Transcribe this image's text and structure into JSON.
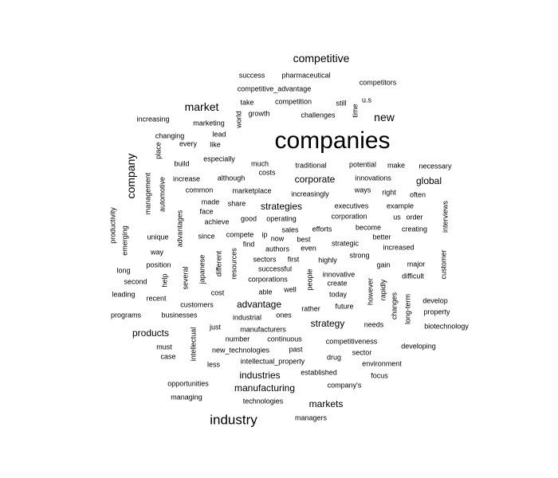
{
  "title": "Word cloud",
  "text_color": "#000000",
  "background": "#ffffff",
  "words": [
    {
      "text": "companies",
      "weight": 10,
      "vertical": false
    },
    {
      "text": "industry",
      "weight": 6,
      "vertical": false
    },
    {
      "text": "competitive",
      "weight": 5,
      "vertical": false
    },
    {
      "text": "market",
      "weight": 5,
      "vertical": false
    },
    {
      "text": "company",
      "weight": 5,
      "vertical": true
    },
    {
      "text": "new",
      "weight": 5,
      "vertical": false
    },
    {
      "text": "global",
      "weight": 4,
      "vertical": false
    },
    {
      "text": "corporate",
      "weight": 4,
      "vertical": false
    },
    {
      "text": "strategy",
      "weight": 4,
      "vertical": false
    },
    {
      "text": "products",
      "weight": 4,
      "vertical": false
    },
    {
      "text": "markets",
      "weight": 4,
      "vertical": false
    },
    {
      "text": "industries",
      "weight": 3,
      "vertical": false
    },
    {
      "text": "manufacturing",
      "weight": 3,
      "vertical": false
    },
    {
      "text": "advantage",
      "weight": 3,
      "vertical": false
    },
    {
      "text": "strategies",
      "weight": 3,
      "vertical": false
    },
    {
      "text": "success",
      "weight": 1,
      "vertical": false
    },
    {
      "text": "pharmaceutical",
      "weight": 1,
      "vertical": false
    },
    {
      "text": "competitors",
      "weight": 1,
      "vertical": false
    },
    {
      "text": "competitive_advantage",
      "weight": 2,
      "vertical": false
    },
    {
      "text": "u.s",
      "weight": 1,
      "vertical": false
    },
    {
      "text": "take",
      "weight": 1,
      "vertical": false
    },
    {
      "text": "competition",
      "weight": 2,
      "vertical": false
    },
    {
      "text": "still",
      "weight": 1,
      "vertical": false
    },
    {
      "text": "time",
      "weight": 1,
      "vertical": true
    },
    {
      "text": "world",
      "weight": 1,
      "vertical": true
    },
    {
      "text": "growth",
      "weight": 1,
      "vertical": false
    },
    {
      "text": "challenges",
      "weight": 1,
      "vertical": false
    },
    {
      "text": "increasing",
      "weight": 1,
      "vertical": false
    },
    {
      "text": "marketing",
      "weight": 1,
      "vertical": false
    },
    {
      "text": "lead",
      "weight": 1,
      "vertical": false
    },
    {
      "text": "every",
      "weight": 1,
      "vertical": false
    },
    {
      "text": "changing",
      "weight": 1,
      "vertical": false
    },
    {
      "text": "place",
      "weight": 1,
      "vertical": true
    },
    {
      "text": "like",
      "weight": 1,
      "vertical": false
    },
    {
      "text": "especially",
      "weight": 1,
      "vertical": false
    },
    {
      "text": "build",
      "weight": 1,
      "vertical": false
    },
    {
      "text": "much",
      "weight": 1,
      "vertical": false
    },
    {
      "text": "traditional",
      "weight": 1,
      "vertical": false
    },
    {
      "text": "potential",
      "weight": 1,
      "vertical": false
    },
    {
      "text": "make",
      "weight": 1,
      "vertical": false
    },
    {
      "text": "necessary",
      "weight": 1,
      "vertical": false
    },
    {
      "text": "costs",
      "weight": 1,
      "vertical": false
    },
    {
      "text": "innovations",
      "weight": 1,
      "vertical": false
    },
    {
      "text": "management",
      "weight": 1,
      "vertical": true
    },
    {
      "text": "automotive",
      "weight": 1,
      "vertical": true
    },
    {
      "text": "increase",
      "weight": 1,
      "vertical": false
    },
    {
      "text": "although",
      "weight": 1,
      "vertical": false
    },
    {
      "text": "common",
      "weight": 1,
      "vertical": false
    },
    {
      "text": "marketplace",
      "weight": 1,
      "vertical": false
    },
    {
      "text": "increasingly",
      "weight": 1,
      "vertical": false
    },
    {
      "text": "ways",
      "weight": 1,
      "vertical": false
    },
    {
      "text": "right",
      "weight": 1,
      "vertical": false
    },
    {
      "text": "often",
      "weight": 1,
      "vertical": false
    },
    {
      "text": "made",
      "weight": 1,
      "vertical": false
    },
    {
      "text": "share",
      "weight": 1,
      "vertical": false
    },
    {
      "text": "executives",
      "weight": 1,
      "vertical": false
    },
    {
      "text": "example",
      "weight": 1,
      "vertical": false
    },
    {
      "text": "face",
      "weight": 1,
      "vertical": false
    },
    {
      "text": "good",
      "weight": 1,
      "vertical": false
    },
    {
      "text": "operating",
      "weight": 1,
      "vertical": false
    },
    {
      "text": "corporation",
      "weight": 1,
      "vertical": false
    },
    {
      "text": "us",
      "weight": 1,
      "vertical": false
    },
    {
      "text": "order",
      "weight": 1,
      "vertical": false
    },
    {
      "text": "interviews",
      "weight": 1,
      "vertical": true
    },
    {
      "text": "productivity",
      "weight": 1,
      "vertical": true
    },
    {
      "text": "advantages",
      "weight": 1,
      "vertical": true
    },
    {
      "text": "achieve",
      "weight": 1,
      "vertical": false
    },
    {
      "text": "become",
      "weight": 1,
      "vertical": false
    },
    {
      "text": "creating",
      "weight": 1,
      "vertical": false
    },
    {
      "text": "emerging",
      "weight": 1,
      "vertical": true
    },
    {
      "text": "unique",
      "weight": 1,
      "vertical": false
    },
    {
      "text": "since",
      "weight": 1,
      "vertical": false
    },
    {
      "text": "compete",
      "weight": 1,
      "vertical": false
    },
    {
      "text": "ip",
      "weight": 1,
      "vertical": false
    },
    {
      "text": "sales",
      "weight": 1,
      "vertical": false
    },
    {
      "text": "efforts",
      "weight": 1,
      "vertical": false
    },
    {
      "text": "now",
      "weight": 1,
      "vertical": false
    },
    {
      "text": "best",
      "weight": 1,
      "vertical": false
    },
    {
      "text": "better",
      "weight": 1,
      "vertical": false
    },
    {
      "text": "find",
      "weight": 1,
      "vertical": false
    },
    {
      "text": "strategic",
      "weight": 1,
      "vertical": false
    },
    {
      "text": "increased",
      "weight": 1,
      "vertical": false
    },
    {
      "text": "way",
      "weight": 1,
      "vertical": false
    },
    {
      "text": "resources",
      "weight": 1,
      "vertical": true
    },
    {
      "text": "authors",
      "weight": 1,
      "vertical": false
    },
    {
      "text": "even",
      "weight": 1,
      "vertical": false
    },
    {
      "text": "strong",
      "weight": 1,
      "vertical": false
    },
    {
      "text": "position",
      "weight": 1,
      "vertical": false
    },
    {
      "text": "japanese",
      "weight": 1,
      "vertical": true
    },
    {
      "text": "different",
      "weight": 1,
      "vertical": true
    },
    {
      "text": "sectors",
      "weight": 1,
      "vertical": false
    },
    {
      "text": "first",
      "weight": 1,
      "vertical": false
    },
    {
      "text": "highly",
      "weight": 1,
      "vertical": false
    },
    {
      "text": "gain",
      "weight": 1,
      "vertical": false
    },
    {
      "text": "major",
      "weight": 1,
      "vertical": false
    },
    {
      "text": "customer",
      "weight": 1,
      "vertical": true
    },
    {
      "text": "long",
      "weight": 1,
      "vertical": false
    },
    {
      "text": "several",
      "weight": 1,
      "vertical": true
    },
    {
      "text": "successful",
      "weight": 1,
      "vertical": false
    },
    {
      "text": "people",
      "weight": 1,
      "vertical": true
    },
    {
      "text": "innovative",
      "weight": 1,
      "vertical": false
    },
    {
      "text": "difficult",
      "weight": 1,
      "vertical": false
    },
    {
      "text": "second",
      "weight": 1,
      "vertical": false
    },
    {
      "text": "help",
      "weight": 1,
      "vertical": true
    },
    {
      "text": "corporations",
      "weight": 1,
      "vertical": false
    },
    {
      "text": "create",
      "weight": 1,
      "vertical": false
    },
    {
      "text": "however",
      "weight": 1,
      "vertical": true
    },
    {
      "text": "rapidly",
      "weight": 1,
      "vertical": true
    },
    {
      "text": "able",
      "weight": 1,
      "vertical": false
    },
    {
      "text": "well",
      "weight": 1,
      "vertical": false
    },
    {
      "text": "leading",
      "weight": 1,
      "vertical": false
    },
    {
      "text": "cost",
      "weight": 1,
      "vertical": false
    },
    {
      "text": "today",
      "weight": 1,
      "vertical": false
    },
    {
      "text": "recent",
      "weight": 1,
      "vertical": false
    },
    {
      "text": "develop",
      "weight": 1,
      "vertical": false
    },
    {
      "text": "long-term",
      "weight": 1,
      "vertical": true
    },
    {
      "text": "changes",
      "weight": 1,
      "vertical": true
    },
    {
      "text": "customers",
      "weight": 1,
      "vertical": false
    },
    {
      "text": "rather",
      "weight": 1,
      "vertical": false
    },
    {
      "text": "future",
      "weight": 1,
      "vertical": false
    },
    {
      "text": "property",
      "weight": 1,
      "vertical": false
    },
    {
      "text": "programs",
      "weight": 1,
      "vertical": false
    },
    {
      "text": "businesses",
      "weight": 1,
      "vertical": false
    },
    {
      "text": "industrial",
      "weight": 1,
      "vertical": false
    },
    {
      "text": "ones",
      "weight": 1,
      "vertical": false
    },
    {
      "text": "just",
      "weight": 1,
      "vertical": false
    },
    {
      "text": "manufacturers",
      "weight": 1,
      "vertical": false
    },
    {
      "text": "needs",
      "weight": 1,
      "vertical": false
    },
    {
      "text": "biotechnology",
      "weight": 1,
      "vertical": false
    },
    {
      "text": "intellectual",
      "weight": 1,
      "vertical": true
    },
    {
      "text": "number",
      "weight": 1,
      "vertical": false
    },
    {
      "text": "continuous",
      "weight": 1,
      "vertical": false
    },
    {
      "text": "must",
      "weight": 1,
      "vertical": false
    },
    {
      "text": "competitiveness",
      "weight": 1,
      "vertical": false
    },
    {
      "text": "developing",
      "weight": 1,
      "vertical": false
    },
    {
      "text": "new_technologies",
      "weight": 1,
      "vertical": false
    },
    {
      "text": "past",
      "weight": 1,
      "vertical": false
    },
    {
      "text": "sector",
      "weight": 1,
      "vertical": false
    },
    {
      "text": "case",
      "weight": 1,
      "vertical": false
    },
    {
      "text": "drug",
      "weight": 1,
      "vertical": false
    },
    {
      "text": "less",
      "weight": 1,
      "vertical": false
    },
    {
      "text": "intellectual_property",
      "weight": 1,
      "vertical": false
    },
    {
      "text": "environment",
      "weight": 1,
      "vertical": false
    },
    {
      "text": "established",
      "weight": 1,
      "vertical": false
    },
    {
      "text": "focus",
      "weight": 1,
      "vertical": false
    },
    {
      "text": "opportunities",
      "weight": 1,
      "vertical": false
    },
    {
      "text": "company's",
      "weight": 1,
      "vertical": false
    },
    {
      "text": "managing",
      "weight": 1,
      "vertical": false
    },
    {
      "text": "technologies",
      "weight": 1,
      "vertical": false
    },
    {
      "text": "managers",
      "weight": 1,
      "vertical": false
    }
  ]
}
